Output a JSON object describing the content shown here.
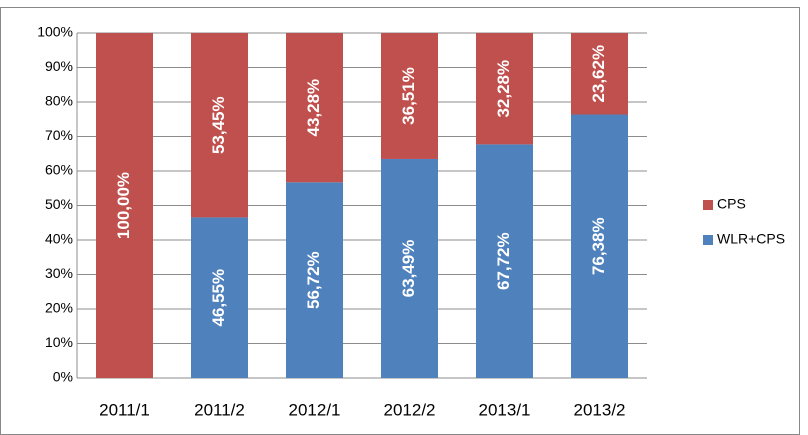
{
  "chart_data": {
    "type": "bar",
    "stacked": true,
    "categories": [
      "2011/1",
      "2011/2",
      "2012/1",
      "2012/2",
      "2013/1",
      "2013/2"
    ],
    "series": [
      {
        "name": "WLR+CPS",
        "color": "#4f81bd",
        "values": [
          0,
          46.55,
          56.72,
          63.49,
          67.72,
          76.38
        ],
        "value_labels": [
          null,
          "46,55%",
          "56,72%",
          "63,49%",
          "67,72%",
          "76,38%"
        ]
      },
      {
        "name": "CPS",
        "color": "#c0504d",
        "values": [
          100,
          53.45,
          43.28,
          36.51,
          32.28,
          23.62
        ],
        "value_labels": [
          "100,00%",
          "53,45%",
          "43,28%",
          "36,51%",
          "32,28%",
          "23,62%"
        ]
      }
    ],
    "ylim": [
      0,
      100
    ],
    "yticks": [
      {
        "value": 0,
        "label": "0%"
      },
      {
        "value": 10,
        "label": "10%"
      },
      {
        "value": 20,
        "label": "20%"
      },
      {
        "value": 30,
        "label": "30%"
      },
      {
        "value": 40,
        "label": "40%"
      },
      {
        "value": 50,
        "label": "50%"
      },
      {
        "value": 60,
        "label": "60%"
      },
      {
        "value": 70,
        "label": "70%"
      },
      {
        "value": 80,
        "label": "80%"
      },
      {
        "value": 90,
        "label": "90%"
      },
      {
        "value": 100,
        "label": "100%"
      }
    ],
    "grid": true,
    "legend": "right"
  }
}
